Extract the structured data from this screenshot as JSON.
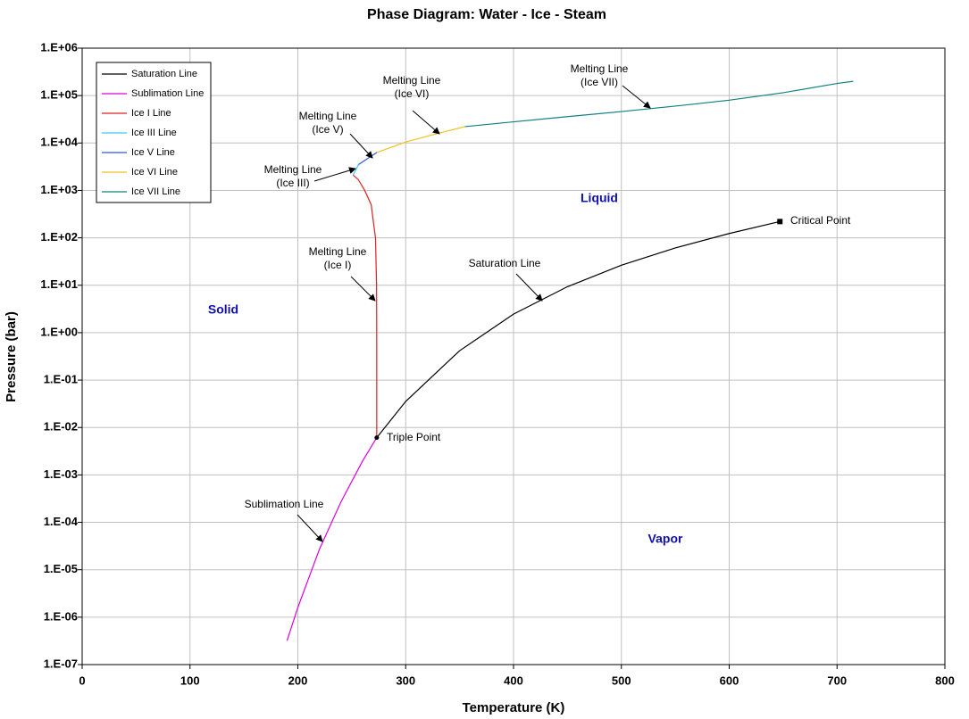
{
  "chart_data": {
    "type": "line",
    "title": "Phase Diagram: Water - Ice - Steam",
    "xlabel": "Temperature (K)",
    "ylabel": "Pressure (bar)",
    "log_y": true,
    "grid": true,
    "legend": "upper left",
    "xlim": [
      0,
      800
    ],
    "xticks": [
      0,
      100,
      200,
      300,
      400,
      500,
      600,
      700,
      800
    ],
    "ylim": [
      1e-07,
      1000000.0
    ],
    "yticks": [
      {
        "value": 1000000.0,
        "label": "1.E+06"
      },
      {
        "value": 100000.0,
        "label": "1.E+05"
      },
      {
        "value": 10000.0,
        "label": "1.E+04"
      },
      {
        "value": 1000.0,
        "label": "1.E+03"
      },
      {
        "value": 100.0,
        "label": "1.E+02"
      },
      {
        "value": 10.0,
        "label": "1.E+01"
      },
      {
        "value": 1,
        "label": "1.E+00"
      },
      {
        "value": 0.1,
        "label": "1.E-01"
      },
      {
        "value": 0.01,
        "label": "1.E-02"
      },
      {
        "value": 0.001,
        "label": "1.E-03"
      },
      {
        "value": 0.0001,
        "label": "1.E-04"
      },
      {
        "value": 1e-05,
        "label": "1.E-05"
      },
      {
        "value": 1e-06,
        "label": "1.E-06"
      },
      {
        "value": 1e-07,
        "label": "1.E-07"
      }
    ],
    "series": [
      {
        "name": "Saturation Line",
        "color": "#000000",
        "x": [
          273.16,
          300,
          350,
          400,
          450,
          500,
          550,
          600,
          647
        ],
        "values": [
          0.00611,
          0.0354,
          0.416,
          2.46,
          9.32,
          26.4,
          61.2,
          123.5,
          220.6
        ]
      },
      {
        "name": "Sublimation Line",
        "color": "#dd00dd",
        "x": [
          190,
          200,
          220,
          240,
          260,
          273.16
        ],
        "values": [
          3.2e-07,
          1.6e-06,
          2.7e-05,
          0.00027,
          0.00196,
          0.00611
        ]
      },
      {
        "name": "Ice I Line",
        "color": "#dd2222",
        "x": [
          273.16,
          273.15,
          273,
          272,
          268,
          262,
          256,
          251.2
        ],
        "values": [
          0.00611,
          1,
          10,
          100,
          500,
          1000,
          1700,
          2099
        ]
      },
      {
        "name": "Ice III Line",
        "color": "#33ccee",
        "x": [
          251.2,
          256.2
        ],
        "values": [
          2099,
          3500
        ]
      },
      {
        "name": "Ice V Line",
        "color": "#3355cc",
        "x": [
          256.2,
          273.3
        ],
        "values": [
          3500,
          6324
        ]
      },
      {
        "name": "Ice VI Line",
        "color": "#f0c020",
        "x": [
          273.3,
          300,
          330,
          355
        ],
        "values": [
          6324,
          10500,
          16000,
          22160
        ]
      },
      {
        "name": "Ice VII Line",
        "color": "#108080",
        "x": [
          355,
          400,
          450,
          500,
          550,
          600,
          650,
          700,
          715
        ],
        "values": [
          22160,
          28000,
          36000,
          46000,
          60000,
          80000,
          115000,
          180000,
          200000
        ]
      }
    ],
    "annotations": [
      {
        "text": [
          "Melting Line",
          "(Ice VII)"
        ],
        "color": "#000000"
      },
      {
        "text": [
          "Melting Line",
          "(Ice VI)"
        ],
        "color": "#e8b800"
      },
      {
        "text": [
          "Melting Line",
          "(Ice V)"
        ],
        "color": "#2a6fbf"
      },
      {
        "text": [
          "Melting Line",
          "(Ice III)"
        ],
        "color": "#33bbdd"
      },
      {
        "text": [
          "Melting Line",
          "(Ice I)"
        ],
        "color": "#dd2222"
      },
      {
        "text": [
          "Saturation Line"
        ],
        "color": "#000000"
      },
      {
        "text": [
          "Sublimation Line"
        ],
        "color": "#cc00cc"
      },
      {
        "text": [
          "Triple Point"
        ],
        "color": "#1a1aa8"
      },
      {
        "text": [
          "Critical Point"
        ],
        "color": "#1a1aa8"
      }
    ],
    "regions": [
      "Solid",
      "Liquid",
      "Vapor"
    ]
  }
}
